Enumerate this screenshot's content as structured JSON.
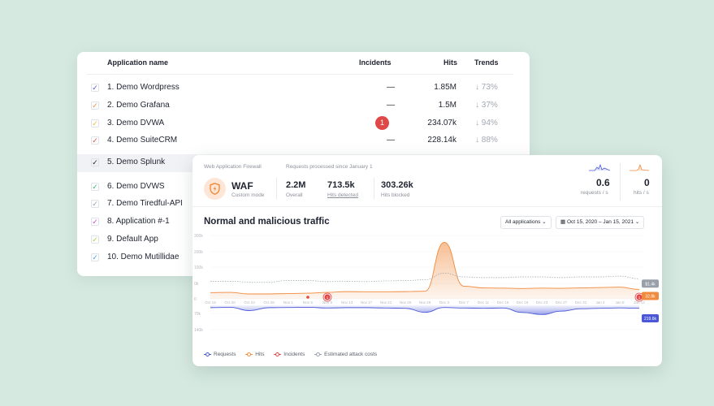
{
  "apps_table": {
    "headers": {
      "name": "Application name",
      "incidents": "Incidents",
      "hits": "Hits",
      "trends": "Trends"
    },
    "rows": [
      {
        "name": "1. Demo Wordpress",
        "incidents": "—",
        "hits": "1.85M",
        "trend": "↓ 73%",
        "check_color": "#4a58d8"
      },
      {
        "name": "2. Demo Grafana",
        "incidents": "—",
        "hits": "1.5M",
        "trend": "↓ 37%",
        "check_color": "#f08a3c"
      },
      {
        "name": "3. Demo DVWA",
        "incidents": "1",
        "hits": "234.07k",
        "trend": "↓ 94%",
        "check_color": "#f2b63c"
      },
      {
        "name": "4. Demo SuiteCRM",
        "incidents": "—",
        "hits": "228.14k",
        "trend": "↓ 88%",
        "check_color": "#e24f4f"
      },
      {
        "name": "5. Demo Splunk",
        "check_color": "#1f2330"
      },
      {
        "name": "6. Demo DVWS",
        "check_color": "#3cb866"
      },
      {
        "name": "7. Demo Tiredful-API",
        "check_color": "#9aa0aa"
      },
      {
        "name": "8. Application #-1",
        "check_color": "#c74cd6"
      },
      {
        "name": "9. Default App",
        "check_color": "#a8d43c"
      },
      {
        "name": "10. Demo Mutillidae",
        "check_color": "#4aa3e8"
      }
    ]
  },
  "waf": {
    "section_label": "Web Application Firewall",
    "since_label": "Requests processed since January 1",
    "name": "WAF",
    "mode": "Custom mode",
    "overall_value": "2.2M",
    "overall_label": "Overall",
    "detected_value": "713.5k",
    "detected_label": "Hits detected",
    "blocked_value": "303.26k",
    "blocked_label": "Hits blocked",
    "rps_value": "0.6",
    "rps_label": "requests / s",
    "hps_value": "0",
    "hps_label": "hits / s"
  },
  "chart": {
    "title": "Normal and malicious traffic",
    "filter": "All applications",
    "date_range": "Oct 15, 2020 – Jan 15, 2021",
    "legend": [
      "Requests",
      "Hits",
      "Incidents",
      "Estimated attack costs"
    ],
    "colors": {
      "requests": "#4a58d8",
      "hits": "#f08a3c",
      "incidents": "#e04848",
      "costs": "#9aa0aa"
    }
  },
  "chart_data": {
    "type": "area",
    "title": "Normal and malicious traffic",
    "x": [
      "Oct 16",
      "Oct 20",
      "Oct 24",
      "Oct 28",
      "Nov 1",
      "Nov 5",
      "Nov 9",
      "Nov 13",
      "Nov 17",
      "Nov 21",
      "Nov 25",
      "Nov 29",
      "Dec 3",
      "Dec 7",
      "Dec 11",
      "Dec 15",
      "Dec 19",
      "Dec 23",
      "Dec 27",
      "Dec 31",
      "Jan 4",
      "Jan 8",
      "Jan 12"
    ],
    "y_ticks_upper": [
      "300k",
      "200k",
      "100k",
      "0k",
      "0"
    ],
    "y_ticks_lower": [
      "0",
      "70k",
      "140k"
    ],
    "series": [
      {
        "name": "Hits",
        "values": [
          32,
          33,
          25,
          25,
          27,
          29,
          33,
          37,
          36,
          36,
          37,
          39,
          290,
          65,
          56,
          55,
          53,
          55,
          54,
          56,
          58,
          60,
          48
        ]
      },
      {
        "name": "Requests",
        "values": [
          30,
          25,
          68,
          30,
          28,
          25,
          35,
          30,
          30,
          35,
          38,
          90,
          28,
          35,
          38,
          35,
          92,
          118,
          75,
          44,
          38,
          33,
          38
        ]
      },
      {
        "name": "Estimated attack costs",
        "values": [
          48,
          48,
          46,
          46,
          50,
          50,
          47,
          48,
          47,
          49,
          50,
          52,
          70,
          60,
          58,
          58,
          60,
          60,
          58,
          60,
          60,
          62,
          55
        ]
      }
    ],
    "incidents": [
      {
        "x": "Nov 5"
      },
      {
        "x": "Nov 9",
        "label": "1"
      },
      {
        "x": "Jan 12",
        "label": "1"
      }
    ],
    "end_labels": {
      "costs": "$1.4k",
      "hits": "32.8k",
      "requests": "219.6k"
    }
  }
}
